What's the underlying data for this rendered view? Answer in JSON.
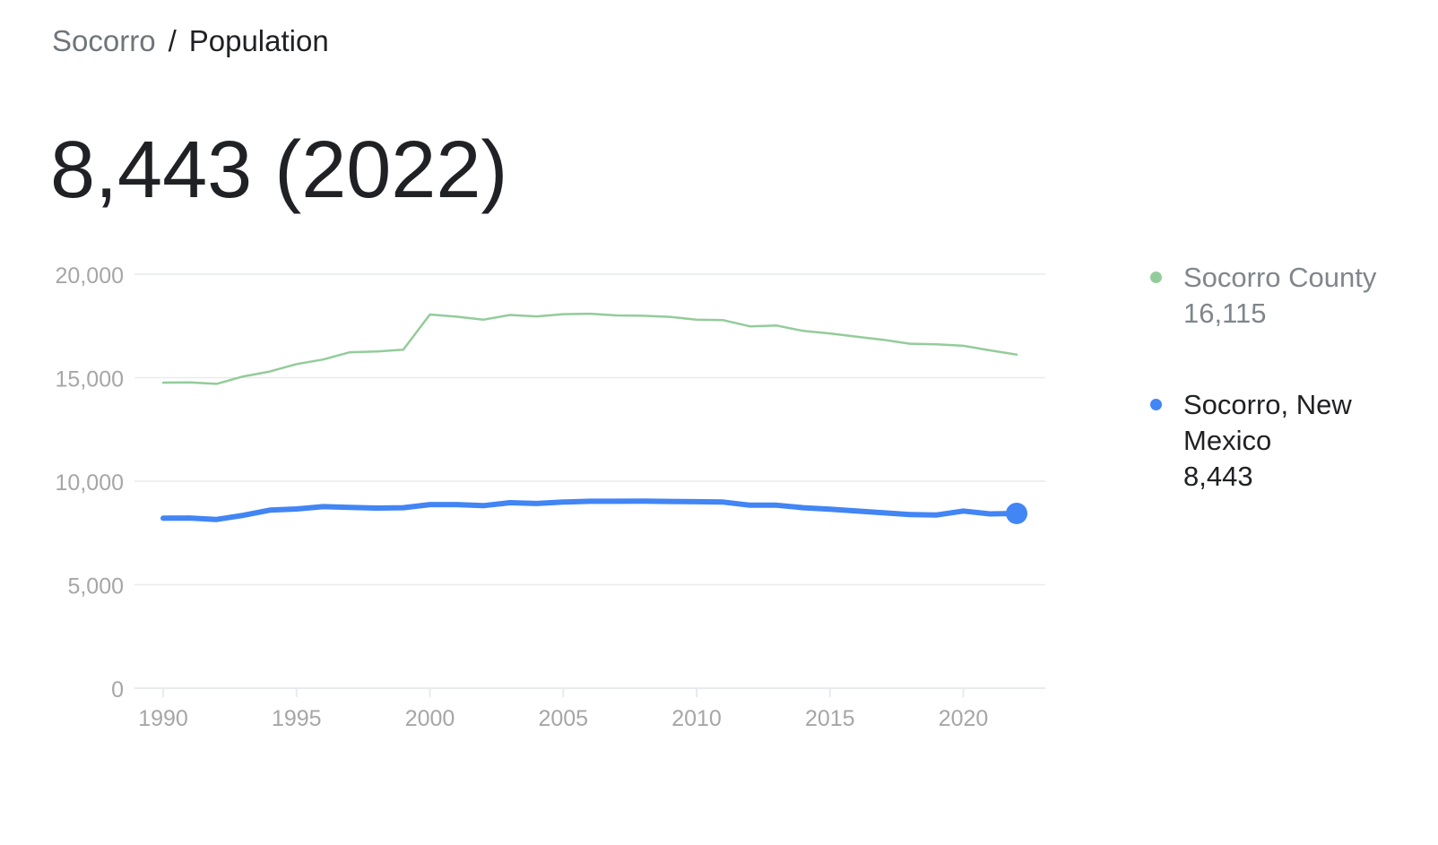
{
  "breadcrumb": {
    "place": "Socorro",
    "separator": "/",
    "topic": "Population"
  },
  "headline": "8,443 (2022)",
  "legend": [
    {
      "name": "Socorro County",
      "value": "16,115",
      "color": "#93cc9a"
    },
    {
      "name": "Socorro, New Mexico",
      "value": "8,443",
      "color": "#4285f4"
    }
  ],
  "colors": {
    "gridline": "#e8eaed",
    "axis_text": "#a6a6a6",
    "county": "#93cc9a",
    "city": "#4285f4"
  },
  "chart_data": {
    "type": "line",
    "x": [
      1990,
      1991,
      1992,
      1993,
      1994,
      1995,
      1996,
      1997,
      1998,
      1999,
      2000,
      2001,
      2002,
      2003,
      2004,
      2005,
      2006,
      2007,
      2008,
      2009,
      2010,
      2011,
      2012,
      2013,
      2014,
      2015,
      2016,
      2017,
      2018,
      2019,
      2020,
      2021,
      2022
    ],
    "series": [
      {
        "name": "Socorro County",
        "values": [
          14760,
          14770,
          14700,
          15060,
          15300,
          15660,
          15880,
          16230,
          16270,
          16350,
          18050,
          17950,
          17800,
          18030,
          17960,
          18070,
          18090,
          18010,
          17990,
          17940,
          17800,
          17780,
          17480,
          17520,
          17260,
          17140,
          16980,
          16830,
          16640,
          16610,
          16540,
          16320,
          16115
        ]
      },
      {
        "name": "Socorro, New Mexico",
        "values": [
          8210,
          8220,
          8150,
          8350,
          8600,
          8660,
          8770,
          8730,
          8700,
          8720,
          8870,
          8870,
          8820,
          8960,
          8920,
          8990,
          9030,
          9030,
          9040,
          9020,
          9010,
          8990,
          8840,
          8840,
          8720,
          8650,
          8560,
          8470,
          8390,
          8370,
          8560,
          8420,
          8443
        ]
      }
    ],
    "highlight": {
      "series": "Socorro, New Mexico",
      "x": 2022,
      "y": 8443
    },
    "xlim": [
      1990,
      2023
    ],
    "ylim": [
      0,
      20000
    ],
    "x_ticks": [
      1990,
      1995,
      2000,
      2005,
      2010,
      2015,
      2020
    ],
    "x_tick_labels": [
      "1990",
      "1995",
      "2000",
      "2005",
      "2010",
      "2015",
      "2020"
    ],
    "y_ticks": [
      0,
      5000,
      10000,
      15000,
      20000
    ],
    "y_tick_labels": [
      "0",
      "5,000",
      "10,000",
      "15,000",
      "20,000"
    ],
    "grid": true,
    "legend_position": "right"
  }
}
